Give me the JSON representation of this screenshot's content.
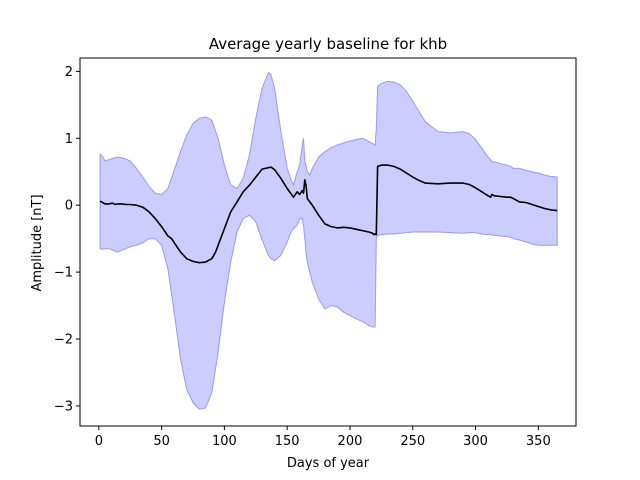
{
  "chart_data": {
    "type": "line",
    "title": "Average yearly baseline for khb",
    "xlabel": "Days of year",
    "ylabel": "Amplitude [nT]",
    "xlim": [
      -15,
      380
    ],
    "ylim": [
      -3.3,
      2.2
    ],
    "xticks": [
      0,
      50,
      100,
      150,
      200,
      250,
      300,
      350
    ],
    "yticks": [
      -3,
      -2,
      -1,
      0,
      1,
      2
    ],
    "grid": false,
    "colors": {
      "band_fill": "#ccccff",
      "band_edge": "#9999ee",
      "line": "#000000"
    },
    "series": [
      {
        "kind": "mean-line",
        "x": [
          1,
          3,
          5,
          8,
          11,
          13,
          15,
          18,
          22,
          25,
          30,
          35,
          40,
          45,
          50,
          55,
          58,
          60,
          65,
          70,
          75,
          80,
          85,
          90,
          93,
          97,
          100,
          105,
          110,
          115,
          120,
          125,
          130,
          135,
          137,
          140,
          145,
          150,
          155,
          158,
          160,
          162,
          163,
          164,
          165,
          166,
          168,
          170,
          175,
          180,
          185,
          190,
          195,
          200,
          205,
          210,
          215,
          218,
          219,
          220,
          221,
          222,
          225,
          230,
          235,
          240,
          245,
          250,
          255,
          260,
          270,
          280,
          290,
          295,
          300,
          305,
          310,
          312,
          313,
          315,
          320,
          325,
          328,
          330,
          335,
          340,
          345,
          350,
          355,
          360,
          365
        ],
        "y": [
          0.06,
          0.04,
          0.02,
          0.02,
          0.03,
          0.01,
          0.02,
          0.02,
          0.01,
          0.01,
          0.0,
          -0.03,
          -0.1,
          -0.2,
          -0.32,
          -0.46,
          -0.5,
          -0.56,
          -0.7,
          -0.8,
          -0.84,
          -0.86,
          -0.85,
          -0.8,
          -0.7,
          -0.5,
          -0.35,
          -0.1,
          0.05,
          0.2,
          0.3,
          0.42,
          0.54,
          0.56,
          0.57,
          0.53,
          0.4,
          0.25,
          0.12,
          0.2,
          0.16,
          0.22,
          0.18,
          0.38,
          0.3,
          0.1,
          0.05,
          0.0,
          -0.15,
          -0.28,
          -0.32,
          -0.34,
          -0.33,
          -0.34,
          -0.36,
          -0.38,
          -0.4,
          -0.42,
          -0.44,
          -0.43,
          -0.44,
          0.58,
          0.6,
          0.6,
          0.58,
          0.54,
          0.48,
          0.42,
          0.37,
          0.33,
          0.32,
          0.33,
          0.33,
          0.31,
          0.26,
          0.2,
          0.14,
          0.12,
          0.16,
          0.14,
          0.13,
          0.12,
          0.12,
          0.1,
          0.05,
          0.04,
          0.01,
          -0.02,
          -0.05,
          -0.07,
          -0.08
        ]
      },
      {
        "kind": "band",
        "x": [
          1,
          3,
          5,
          8,
          11,
          15,
          20,
          25,
          30,
          35,
          40,
          45,
          50,
          55,
          60,
          65,
          70,
          75,
          80,
          85,
          90,
          95,
          100,
          105,
          110,
          115,
          120,
          125,
          130,
          135,
          137,
          140,
          145,
          150,
          153,
          155,
          158,
          160,
          162,
          163,
          164,
          165,
          166,
          168,
          170,
          175,
          180,
          185,
          190,
          195,
          200,
          205,
          210,
          215,
          218,
          220,
          221,
          222,
          225,
          230,
          235,
          240,
          245,
          250,
          255,
          260,
          270,
          280,
          290,
          295,
          300,
          305,
          310,
          312,
          313,
          315,
          320,
          325,
          328,
          330,
          335,
          340,
          345,
          350,
          355,
          360,
          365
        ],
        "upper": [
          0.76,
          0.73,
          0.66,
          0.68,
          0.7,
          0.72,
          0.7,
          0.66,
          0.55,
          0.42,
          0.28,
          0.18,
          0.16,
          0.25,
          0.52,
          0.8,
          1.05,
          1.22,
          1.3,
          1.32,
          1.27,
          1.0,
          0.6,
          0.3,
          0.25,
          0.4,
          0.75,
          1.3,
          1.75,
          1.98,
          1.95,
          1.75,
          1.1,
          0.55,
          0.38,
          0.3,
          0.5,
          0.6,
          0.9,
          1.0,
          0.65,
          0.6,
          0.5,
          0.45,
          0.55,
          0.72,
          0.8,
          0.86,
          0.9,
          0.93,
          0.96,
          0.98,
          1.0,
          0.95,
          0.92,
          0.9,
          1.15,
          1.78,
          1.82,
          1.85,
          1.84,
          1.8,
          1.7,
          1.55,
          1.4,
          1.25,
          1.1,
          1.08,
          1.1,
          1.07,
          0.98,
          0.85,
          0.72,
          0.68,
          0.65,
          0.65,
          0.62,
          0.6,
          0.58,
          0.55,
          0.55,
          0.52,
          0.5,
          0.48,
          0.45,
          0.43,
          0.42
        ],
        "lower": [
          -0.65,
          -0.66,
          -0.65,
          -0.65,
          -0.67,
          -0.7,
          -0.66,
          -0.62,
          -0.6,
          -0.56,
          -0.5,
          -0.5,
          -0.6,
          -0.95,
          -1.6,
          -2.3,
          -2.75,
          -2.95,
          -3.05,
          -3.03,
          -2.8,
          -2.2,
          -1.45,
          -0.85,
          -0.4,
          -0.2,
          -0.15,
          -0.25,
          -0.52,
          -0.75,
          -0.8,
          -0.83,
          -0.75,
          -0.55,
          -0.4,
          -0.35,
          -0.3,
          -0.2,
          -0.2,
          -0.3,
          -0.5,
          -0.7,
          -0.85,
          -1.0,
          -1.15,
          -1.4,
          -1.55,
          -1.5,
          -1.52,
          -1.6,
          -1.65,
          -1.7,
          -1.74,
          -1.8,
          -1.82,
          -1.82,
          -0.5,
          -0.45,
          -0.44,
          -0.43,
          -0.43,
          -0.42,
          -0.41,
          -0.4,
          -0.4,
          -0.4,
          -0.4,
          -0.41,
          -0.42,
          -0.41,
          -0.41,
          -0.43,
          -0.44,
          -0.43,
          -0.45,
          -0.45,
          -0.46,
          -0.47,
          -0.48,
          -0.5,
          -0.52,
          -0.55,
          -0.58,
          -0.6,
          -0.6,
          -0.6,
          -0.6
        ]
      }
    ]
  }
}
